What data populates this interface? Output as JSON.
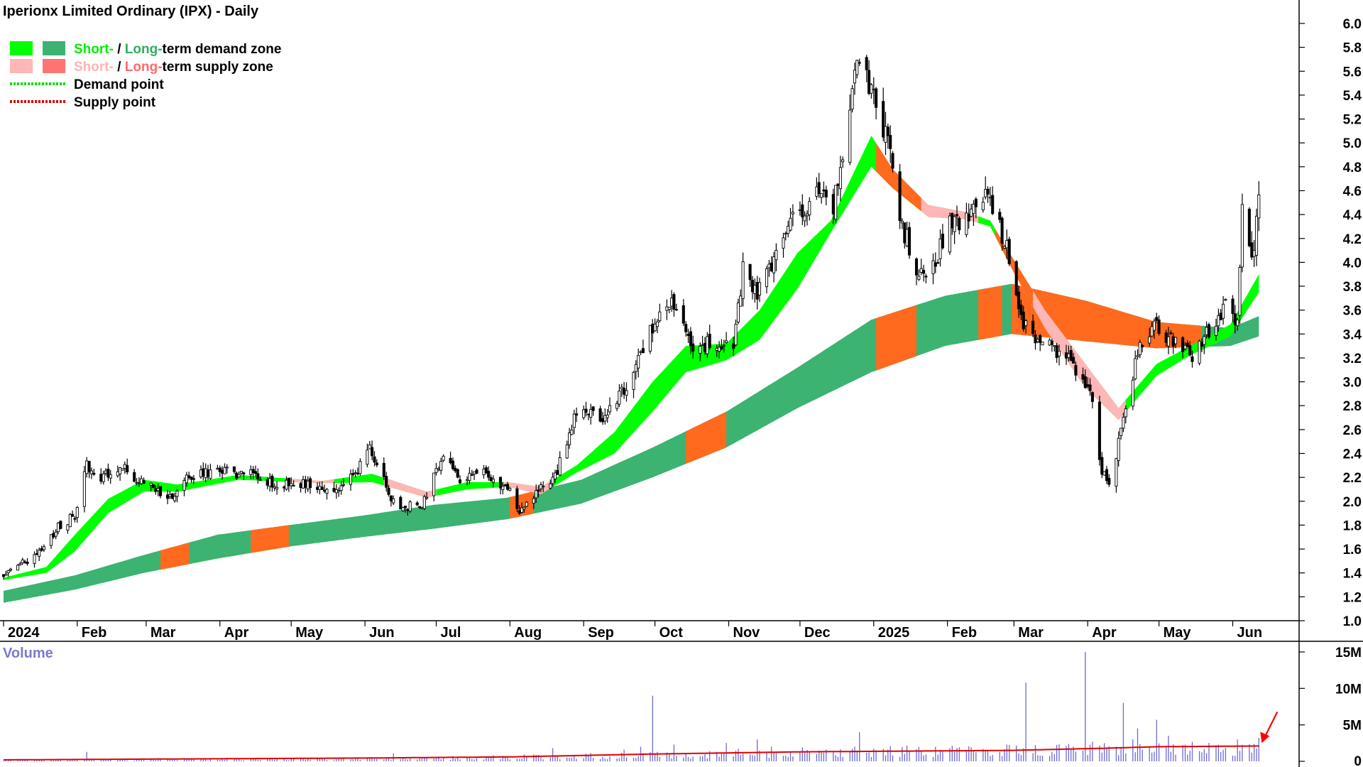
{
  "chart_title": "Iperionx Limited Ordinary (IPX) - Daily",
  "legend": [
    {
      "swatches": [
        "#00ff00",
        "#3cb371"
      ],
      "parts": [
        {
          "text": "Short-",
          "color": "#00ee00"
        },
        {
          "text": " / ",
          "color": "#000000"
        },
        {
          "text": "Long-",
          "color": "#2fae5e"
        },
        {
          "text": "term demand zone",
          "color": "#000000"
        }
      ]
    },
    {
      "swatches": [
        "#ffb6b6",
        "#ff7373"
      ],
      "parts": [
        {
          "text": "Short-",
          "color": "#ffb3b3"
        },
        {
          "text": " / ",
          "color": "#000000"
        },
        {
          "text": "Long-",
          "color": "#ff6a6a"
        },
        {
          "text": "term supply zone",
          "color": "#000000"
        }
      ]
    },
    {
      "line_color": "#00dd00",
      "parts": [
        {
          "text": "Demand point",
          "color": "#000000"
        }
      ]
    },
    {
      "line_color": "#dd0000",
      "parts": [
        {
          "text": "Supply point",
          "color": "#000000"
        }
      ]
    }
  ],
  "volume_label": "Volume",
  "colors": {
    "short_demand": "#00ff00",
    "long_demand": "#3cb371",
    "short_supply": "#ffb6b6",
    "long_supply": "#ff6a1f",
    "candle": "#000000",
    "volume_bar": "#6a6ad8",
    "volume_avg": "#e00000",
    "arrow": "#ff0000"
  },
  "chart_data": {
    "type": "candlestick",
    "title": "Iperionx Limited Ordinary (IPX) - Daily",
    "y_ticks": [
      "6.0",
      "5.8",
      "5.6",
      "5.4",
      "5.2",
      "5.0",
      "4.8",
      "4.6",
      "4.4",
      "4.2",
      "4.0",
      "3.8",
      "3.6",
      "3.4",
      "3.2",
      "3.0",
      "2.8",
      "2.6",
      "2.4",
      "2.2",
      "2.0",
      "1.8",
      "1.6",
      "1.4",
      "1.2",
      "1.0"
    ],
    "ylim": [
      1.0,
      6.0
    ],
    "x_ticks": [
      "2024",
      "Feb",
      "Mar",
      "Apr",
      "May",
      "Jun",
      "Jul",
      "Aug",
      "Sep",
      "Oct",
      "Nov",
      "Dec",
      "2025",
      "Feb",
      "Mar",
      "Apr",
      "May",
      "Jun"
    ],
    "price_anchors": [
      [
        "2024-01-02",
        1.38
      ],
      [
        "2024-01-15",
        1.55
      ],
      [
        "2024-01-25",
        1.78
      ],
      [
        "2024-02-01",
        1.88
      ],
      [
        "2024-02-06",
        2.35
      ],
      [
        "2024-02-09",
        2.18
      ],
      [
        "2024-02-20",
        2.28
      ],
      [
        "2024-03-05",
        2.12
      ],
      [
        "2024-03-12",
        2.02
      ],
      [
        "2024-03-20",
        2.22
      ],
      [
        "2024-04-02",
        2.25
      ],
      [
        "2024-04-15",
        2.22
      ],
      [
        "2024-04-25",
        2.15
      ],
      [
        "2024-05-06",
        2.16
      ],
      [
        "2024-05-20",
        2.12
      ],
      [
        "2024-05-27",
        2.18
      ],
      [
        "2024-06-04",
        2.45
      ],
      [
        "2024-06-10",
        2.22
      ],
      [
        "2024-06-14",
        1.98
      ],
      [
        "2024-06-25",
        1.95
      ],
      [
        "2024-07-05",
        2.35
      ],
      [
        "2024-07-12",
        2.18
      ],
      [
        "2024-07-22",
        2.22
      ],
      [
        "2024-08-01",
        2.12
      ],
      [
        "2024-08-06",
        1.9
      ],
      [
        "2024-08-12",
        2.05
      ],
      [
        "2024-08-22",
        2.25
      ],
      [
        "2024-08-30",
        2.75
      ],
      [
        "2024-09-09",
        2.7
      ],
      [
        "2024-09-16",
        2.85
      ],
      [
        "2024-09-23",
        3.05
      ],
      [
        "2024-10-01",
        3.45
      ],
      [
        "2024-10-09",
        3.62
      ],
      [
        "2024-10-18",
        3.25
      ],
      [
        "2024-10-28",
        3.35
      ],
      [
        "2024-11-04",
        3.3
      ],
      [
        "2024-11-08",
        3.95
      ],
      [
        "2024-11-14",
        3.75
      ],
      [
        "2024-11-22",
        4.05
      ],
      [
        "2024-12-02",
        4.45
      ],
      [
        "2024-12-09",
        4.58
      ],
      [
        "2024-12-16",
        4.42
      ],
      [
        "2024-12-23",
        5.35
      ],
      [
        "2024-12-27",
        5.8
      ],
      [
        "2025-01-02",
        5.4
      ],
      [
        "2025-01-07",
        5.1
      ],
      [
        "2025-01-14",
        4.3
      ],
      [
        "2025-01-20",
        3.95
      ],
      [
        "2025-01-24",
        3.82
      ],
      [
        "2025-02-03",
        4.3
      ],
      [
        "2025-02-12",
        4.4
      ],
      [
        "2025-02-19",
        4.55
      ],
      [
        "2025-02-26",
        4.2
      ],
      [
        "2025-03-06",
        3.5
      ],
      [
        "2025-03-12",
        3.35
      ],
      [
        "2025-03-20",
        3.25
      ],
      [
        "2025-03-28",
        3.12
      ],
      [
        "2025-04-04",
        2.85
      ],
      [
        "2025-04-08",
        2.25
      ],
      [
        "2025-04-11",
        2.15
      ],
      [
        "2025-04-17",
        2.65
      ],
      [
        "2025-04-24",
        3.35
      ],
      [
        "2025-05-01",
        3.45
      ],
      [
        "2025-05-09",
        3.35
      ],
      [
        "2025-05-16",
        3.2
      ],
      [
        "2025-05-23",
        3.42
      ],
      [
        "2025-05-30",
        3.65
      ],
      [
        "2025-06-04",
        3.45
      ],
      [
        "2025-06-06",
        4.45
      ],
      [
        "2025-06-11",
        4.05
      ],
      [
        "2025-06-13",
        4.6
      ]
    ],
    "short_zone": [
      [
        "2024-01-02",
        1.36,
        1.34
      ],
      [
        "2024-01-20",
        1.45,
        1.4
      ],
      [
        "2024-02-01",
        1.72,
        1.58
      ],
      [
        "2024-02-15",
        2.02,
        1.9
      ],
      [
        "2024-03-01",
        2.18,
        2.08
      ],
      [
        "2024-03-15",
        2.14,
        2.08
      ],
      [
        "2024-04-10",
        2.22,
        2.18
      ],
      [
        "2024-05-15",
        2.17,
        2.15
      ],
      [
        "2024-06-05",
        2.23,
        2.16
      ],
      [
        "2024-06-28",
        2.08,
        2.03
      ],
      [
        "2024-07-15",
        2.16,
        2.1
      ],
      [
        "2024-08-01",
        2.16,
        2.12
      ],
      [
        "2024-08-15",
        2.12,
        2.06
      ],
      [
        "2024-08-30",
        2.3,
        2.24
      ],
      [
        "2024-09-15",
        2.58,
        2.4
      ],
      [
        "2024-10-01",
        3.0,
        2.75
      ],
      [
        "2024-10-15",
        3.3,
        3.08
      ],
      [
        "2024-11-01",
        3.32,
        3.18
      ],
      [
        "2024-11-15",
        3.6,
        3.35
      ],
      [
        "2024-12-01",
        4.08,
        3.78
      ],
      [
        "2024-12-15",
        4.35,
        4.25
      ],
      [
        "2025-01-01",
        5.06,
        4.8
      ],
      [
        "2025-01-10",
        4.78,
        4.62
      ],
      [
        "2025-01-25",
        4.48,
        4.38
      ],
      [
        "2025-02-10",
        4.42,
        4.36
      ],
      [
        "2025-02-20",
        4.35,
        4.3
      ],
      [
        "2025-03-01",
        4.05,
        3.95
      ],
      [
        "2025-03-15",
        3.6,
        3.45
      ],
      [
        "2025-04-01",
        3.15,
        2.95
      ],
      [
        "2025-04-15",
        2.78,
        2.68
      ],
      [
        "2025-05-01",
        3.15,
        3.05
      ],
      [
        "2025-05-15",
        3.3,
        3.22
      ],
      [
        "2025-06-01",
        3.48,
        3.38
      ],
      [
        "2025-06-13",
        3.9,
        3.75
      ]
    ],
    "long_zone": [
      [
        "2024-01-02",
        1.25,
        1.15
      ],
      [
        "2024-02-01",
        1.38,
        1.26
      ],
      [
        "2024-03-01",
        1.55,
        1.4
      ],
      [
        "2024-04-01",
        1.72,
        1.52
      ],
      [
        "2024-05-01",
        1.8,
        1.62
      ],
      [
        "2024-06-01",
        1.88,
        1.7
      ],
      [
        "2024-07-01",
        1.97,
        1.77
      ],
      [
        "2024-08-01",
        2.03,
        1.85
      ],
      [
        "2024-09-01",
        2.18,
        1.98
      ],
      [
        "2024-10-01",
        2.45,
        2.2
      ],
      [
        "2024-11-01",
        2.75,
        2.45
      ],
      [
        "2024-12-01",
        3.12,
        2.78
      ],
      [
        "2025-01-01",
        3.52,
        3.08
      ],
      [
        "2025-02-01",
        3.72,
        3.3
      ],
      [
        "2025-03-01",
        3.82,
        3.4
      ],
      [
        "2025-04-01",
        3.68,
        3.34
      ],
      [
        "2025-05-01",
        3.5,
        3.28
      ],
      [
        "2025-06-01",
        3.45,
        3.3
      ],
      [
        "2025-06-13",
        3.55,
        3.38
      ]
    ],
    "supply_segments": [
      {
        "type": "short",
        "from": "2024-05-01",
        "to": "2024-05-20"
      },
      {
        "type": "short",
        "from": "2024-06-10",
        "to": "2024-07-02"
      },
      {
        "type": "short",
        "from": "2024-07-30",
        "to": "2024-08-20"
      },
      {
        "type": "long",
        "from": "2024-03-08",
        "to": "2024-03-20"
      },
      {
        "type": "long",
        "from": "2024-04-15",
        "to": "2024-05-01"
      },
      {
        "type": "long",
        "from": "2024-08-02",
        "to": "2024-08-12"
      },
      {
        "type": "long",
        "from": "2024-10-15",
        "to": "2024-11-01"
      },
      {
        "type": "long",
        "from": "2025-01-03",
        "to": "2025-01-20"
      },
      {
        "type": "short",
        "from": "2025-01-20",
        "to": "2025-02-15"
      },
      {
        "type": "long",
        "from": "2025-02-15",
        "to": "2025-02-25"
      },
      {
        "type": "short",
        "from": "2025-02-25",
        "to": "2025-04-18"
      },
      {
        "type": "long",
        "from": "2025-03-01",
        "to": "2025-05-20"
      }
    ],
    "volume": {
      "label": "Volume",
      "y_ticks": [
        "15M",
        "10M",
        "5M",
        "0"
      ],
      "ylim": [
        0,
        15000000
      ],
      "spikes": [
        [
          "2024-02-06",
          1300000
        ],
        [
          "2024-06-14",
          1100000
        ],
        [
          "2024-08-20",
          1800000
        ],
        [
          "2024-09-19",
          1600000
        ],
        [
          "2024-09-26",
          2000000
        ],
        [
          "2024-10-01",
          9000000
        ],
        [
          "2024-10-10",
          2300000
        ],
        [
          "2024-11-01",
          2500000
        ],
        [
          "2024-11-06",
          1700000
        ],
        [
          "2024-11-14",
          3000000
        ],
        [
          "2024-11-20",
          2000000
        ],
        [
          "2024-12-27",
          4000000
        ],
        [
          "2025-01-28",
          2000000
        ],
        [
          "2025-02-03",
          1800000
        ],
        [
          "2025-02-19",
          1500000
        ],
        [
          "2025-03-07",
          10800000
        ],
        [
          "2025-04-01",
          15000000
        ],
        [
          "2025-04-04",
          2700000
        ],
        [
          "2025-04-17",
          8000000
        ],
        [
          "2025-04-21",
          3000000
        ],
        [
          "2025-04-23",
          4500000
        ],
        [
          "2025-05-01",
          5700000
        ],
        [
          "2025-05-03",
          5200000
        ],
        [
          "2025-05-06",
          3500000
        ],
        [
          "2025-06-04",
          3000000
        ],
        [
          "2025-06-13",
          3200000
        ]
      ],
      "baseline": [
        [
          "2024-01-02",
          200000
        ],
        [
          "2024-06-01",
          350000
        ],
        [
          "2024-09-01",
          700000
        ],
        [
          "2024-12-01",
          1200000
        ],
        [
          "2025-03-01",
          1500000
        ],
        [
          "2025-06-13",
          1800000
        ]
      ],
      "average": [
        [
          "2024-01-02",
          200000
        ],
        [
          "2024-03-01",
          300000
        ],
        [
          "2024-06-01",
          450000
        ],
        [
          "2024-08-01",
          600000
        ],
        [
          "2024-10-01",
          1000000
        ],
        [
          "2024-12-01",
          1300000
        ],
        [
          "2025-03-01",
          1500000
        ],
        [
          "2025-04-10",
          1800000
        ],
        [
          "2025-05-01",
          2000000
        ],
        [
          "2025-06-13",
          2100000
        ]
      ]
    }
  }
}
